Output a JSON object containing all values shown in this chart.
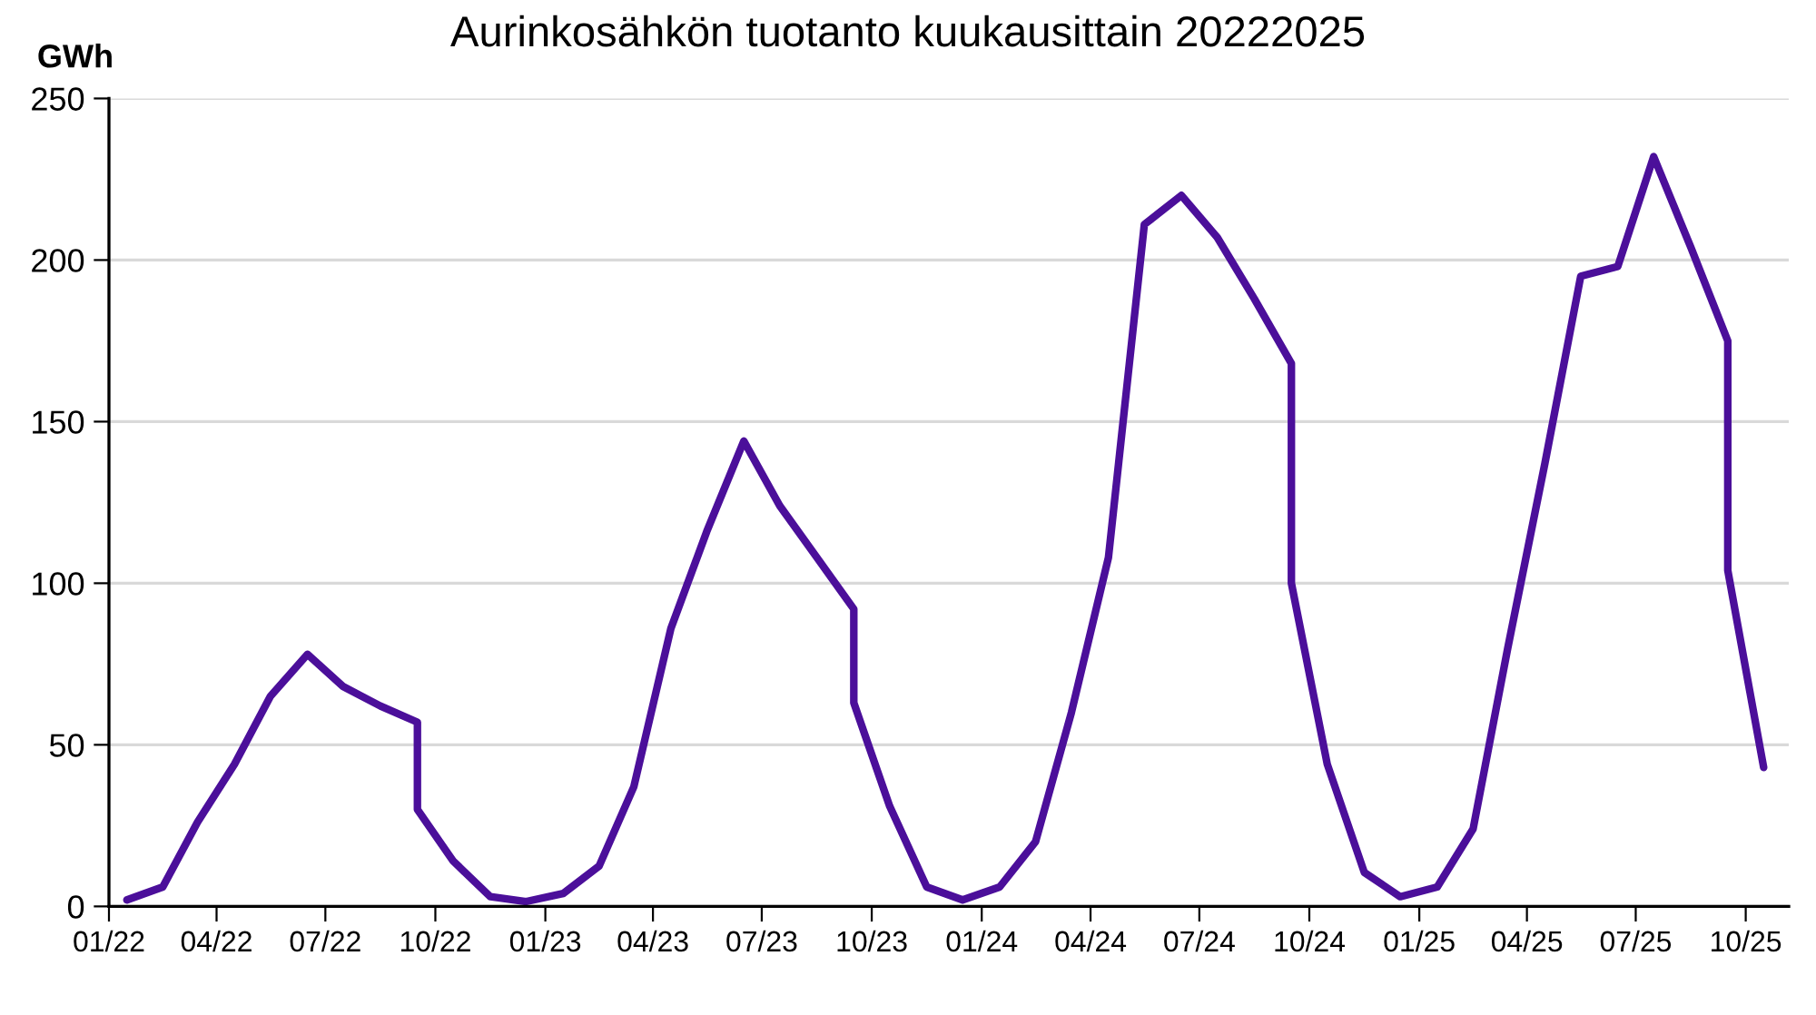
{
  "chart_data": {
    "type": "line",
    "title": "Aurinkosähkön tuotanto kuukausittain 20222025",
    "ylabel": "GWh",
    "x": [
      "2022-01-16",
      "2022-02-15",
      "2022-03-16",
      "2022-04-16",
      "2022-05-16",
      "2022-06-16",
      "2022-07-16",
      "2022-08-16",
      "2022-09-16",
      "2022-09-16",
      "2022-10-16",
      "2022-11-16",
      "2022-12-16",
      "2023-01-16",
      "2023-02-15",
      "2023-03-16",
      "2023-04-16",
      "2023-05-16",
      "2023-06-16",
      "2023-07-16",
      "2023-08-16",
      "2023-09-16",
      "2023-09-16",
      "2023-10-16",
      "2023-11-16",
      "2023-12-16",
      "2024-01-16",
      "2024-02-15",
      "2024-03-16",
      "2024-04-16",
      "2024-05-16",
      "2024-06-16",
      "2024-07-16",
      "2024-08-16",
      "2024-09-16",
      "2024-09-16",
      "2024-10-16",
      "2024-11-16",
      "2024-12-16",
      "2025-01-16",
      "2025-02-15",
      "2025-03-16",
      "2025-04-16",
      "2025-05-16",
      "2025-06-16",
      "2025-07-16",
      "2025-08-16",
      "2025-09-16",
      "2025-09-16",
      "2025-10-16"
    ],
    "series": [
      {
        "color": "#4b0f9a",
        "values": [
          2,
          6,
          26,
          44,
          65,
          78,
          68,
          62,
          57,
          30,
          14,
          3,
          1.5,
          4,
          12.5,
          37,
          86,
          116,
          144,
          124,
          108,
          92,
          63,
          31,
          6,
          2,
          6,
          20,
          60,
          108,
          211,
          220,
          207,
          188,
          168,
          100,
          44,
          10.5,
          3,
          6,
          24,
          80,
          137,
          195,
          198,
          232,
          204,
          175,
          104,
          43
        ]
      }
    ],
    "xlim": [
      "2022-01",
      "2025-11-06"
    ],
    "xticks": [
      {
        "value": "2022-01",
        "label": "01/22"
      },
      {
        "value": "2022-04",
        "label": "04/22"
      },
      {
        "value": "2022-07",
        "label": "07/22"
      },
      {
        "value": "2022-10",
        "label": "10/22"
      },
      {
        "value": "2023-01",
        "label": "01/23"
      },
      {
        "value": "2023-04",
        "label": "04/23"
      },
      {
        "value": "2023-07",
        "label": "07/23"
      },
      {
        "value": "2023-10",
        "label": "10/23"
      },
      {
        "value": "2024-01",
        "label": "01/24"
      },
      {
        "value": "2024-04",
        "label": "04/24"
      },
      {
        "value": "2024-07",
        "label": "07/24"
      },
      {
        "value": "2024-10",
        "label": "10/24"
      },
      {
        "value": "2025-01",
        "label": "01/25"
      },
      {
        "value": "2025-04",
        "label": "04/25"
      },
      {
        "value": "2025-07",
        "label": "07/25"
      },
      {
        "value": "2025-10",
        "label": "10/25"
      }
    ],
    "ylim": [
      0,
      250
    ],
    "yticks": [
      0,
      50,
      100,
      150,
      200,
      250
    ],
    "grid": "y",
    "marker": "none",
    "line_style": "solid"
  }
}
